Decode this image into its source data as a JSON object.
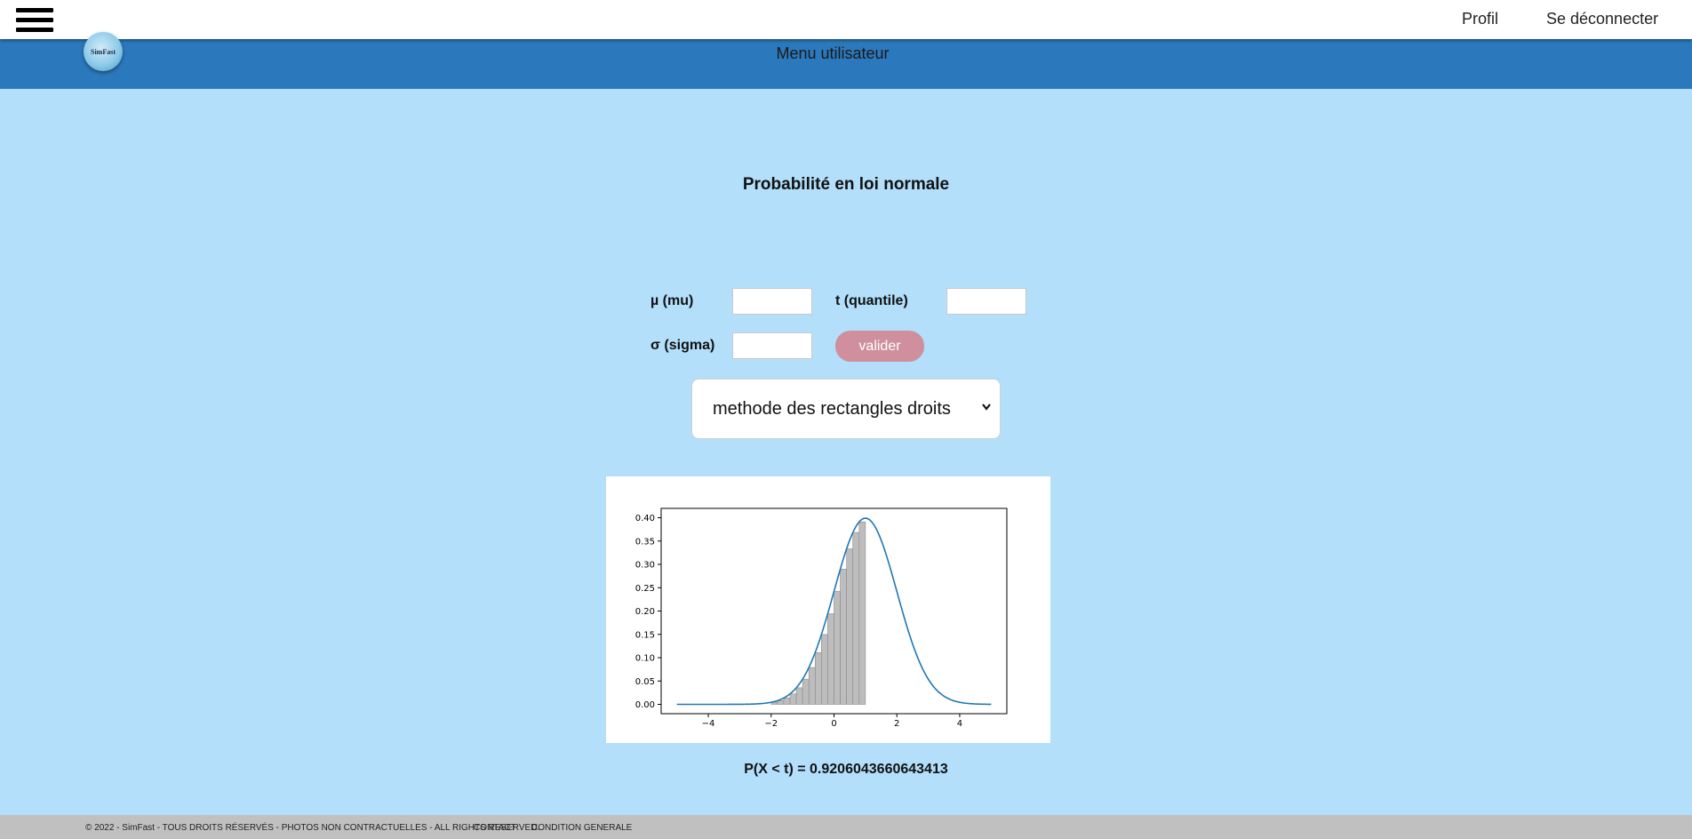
{
  "topbar": {
    "profil_label": "Profil",
    "logout_label": "Se déconnecter"
  },
  "header": {
    "logo_text": "SimFast",
    "menu_title": "Menu utilisateur"
  },
  "page": {
    "title": "Probabilité en loi normale"
  },
  "form": {
    "mu_label": "µ (mu)",
    "t_label": "t (quantile)",
    "sigma_label": "σ (sigma)",
    "mu_value": "",
    "t_value": "",
    "sigma_value": "",
    "valider_label": "valider",
    "method_selected": "methode des rectangles droits"
  },
  "chart_data": {
    "type": "line",
    "title": "",
    "xlabel": "",
    "ylabel": "",
    "xlim": [
      -5.5,
      5.5
    ],
    "ylim": [
      -0.02,
      0.42
    ],
    "x_ticks": [
      -4,
      -2,
      0,
      2,
      4
    ],
    "x_tick_labels": [
      "−4",
      "−2",
      "0",
      "2",
      "4"
    ],
    "y_ticks": [
      0.0,
      0.05,
      0.1,
      0.15,
      0.2,
      0.25,
      0.3,
      0.35,
      0.4
    ],
    "y_tick_labels": [
      "0.00",
      "0.05",
      "0.10",
      "0.15",
      "0.20",
      "0.25",
      "0.30",
      "0.35",
      "0.40"
    ],
    "curve": {
      "name": "",
      "mu": 1,
      "sigma": 1,
      "x_range": [
        -5,
        5
      ],
      "color": "#1f77b4"
    },
    "bars": {
      "x_start": -2.0,
      "width": 0.2,
      "values": [
        0.0044,
        0.0079,
        0.0136,
        0.0224,
        0.0355,
        0.054,
        0.079,
        0.1109,
        0.1497,
        0.1942,
        0.242,
        0.2897,
        0.3332,
        0.3683,
        0.391
      ],
      "fill": "#bdbdbd",
      "edge": "#8a8a8a"
    }
  },
  "result": {
    "text": "P(X < t) = 0.9206043660643413"
  },
  "footer": {
    "copyright": "© 2022 - SimFast - TOUS DROITS RÉSERVÉS - PHOTOS NON CONTRACTUELLES - ALL RIGHTS RESERVED.",
    "contact": "CONTACT",
    "conditions": "CONDITION GENERALE"
  }
}
